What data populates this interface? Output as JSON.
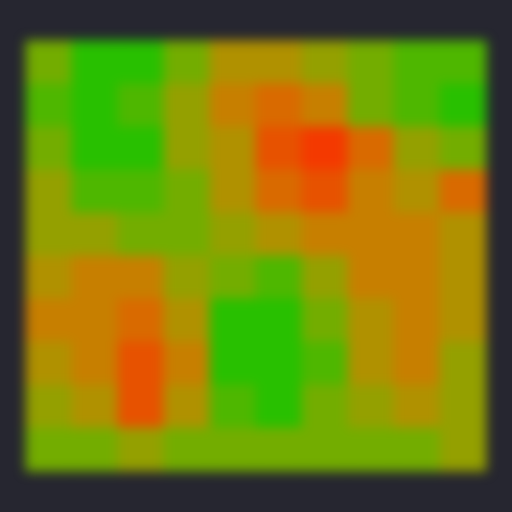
{
  "chart_data": {
    "type": "heatmap",
    "tick_labels": false,
    "colors": [
      "#00c800",
      "#c8a000",
      "#ff2000"
    ],
    "zlim": [
      0,
      1
    ],
    "cells": [
      [
        0.3,
        0.1,
        0.1,
        0.3,
        0.5,
        0.5,
        0.4,
        0.3,
        0.2,
        0.2
      ],
      [
        0.2,
        0.1,
        0.2,
        0.4,
        0.6,
        0.7,
        0.6,
        0.3,
        0.2,
        0.1
      ],
      [
        0.3,
        0.1,
        0.1,
        0.4,
        0.5,
        0.8,
        0.9,
        0.7,
        0.4,
        0.3
      ],
      [
        0.4,
        0.2,
        0.2,
        0.3,
        0.5,
        0.7,
        0.8,
        0.6,
        0.5,
        0.7
      ],
      [
        0.4,
        0.4,
        0.3,
        0.3,
        0.4,
        0.5,
        0.6,
        0.6,
        0.6,
        0.5
      ],
      [
        0.5,
        0.6,
        0.6,
        0.4,
        0.3,
        0.2,
        0.4,
        0.6,
        0.6,
        0.5
      ],
      [
        0.6,
        0.6,
        0.7,
        0.5,
        0.1,
        0.1,
        0.3,
        0.5,
        0.6,
        0.5
      ],
      [
        0.5,
        0.6,
        0.8,
        0.6,
        0.1,
        0.1,
        0.2,
        0.5,
        0.6,
        0.4
      ],
      [
        0.4,
        0.5,
        0.8,
        0.5,
        0.2,
        0.1,
        0.3,
        0.4,
        0.5,
        0.4
      ],
      [
        0.3,
        0.3,
        0.4,
        0.3,
        0.3,
        0.3,
        0.3,
        0.3,
        0.3,
        0.4
      ]
    ]
  }
}
